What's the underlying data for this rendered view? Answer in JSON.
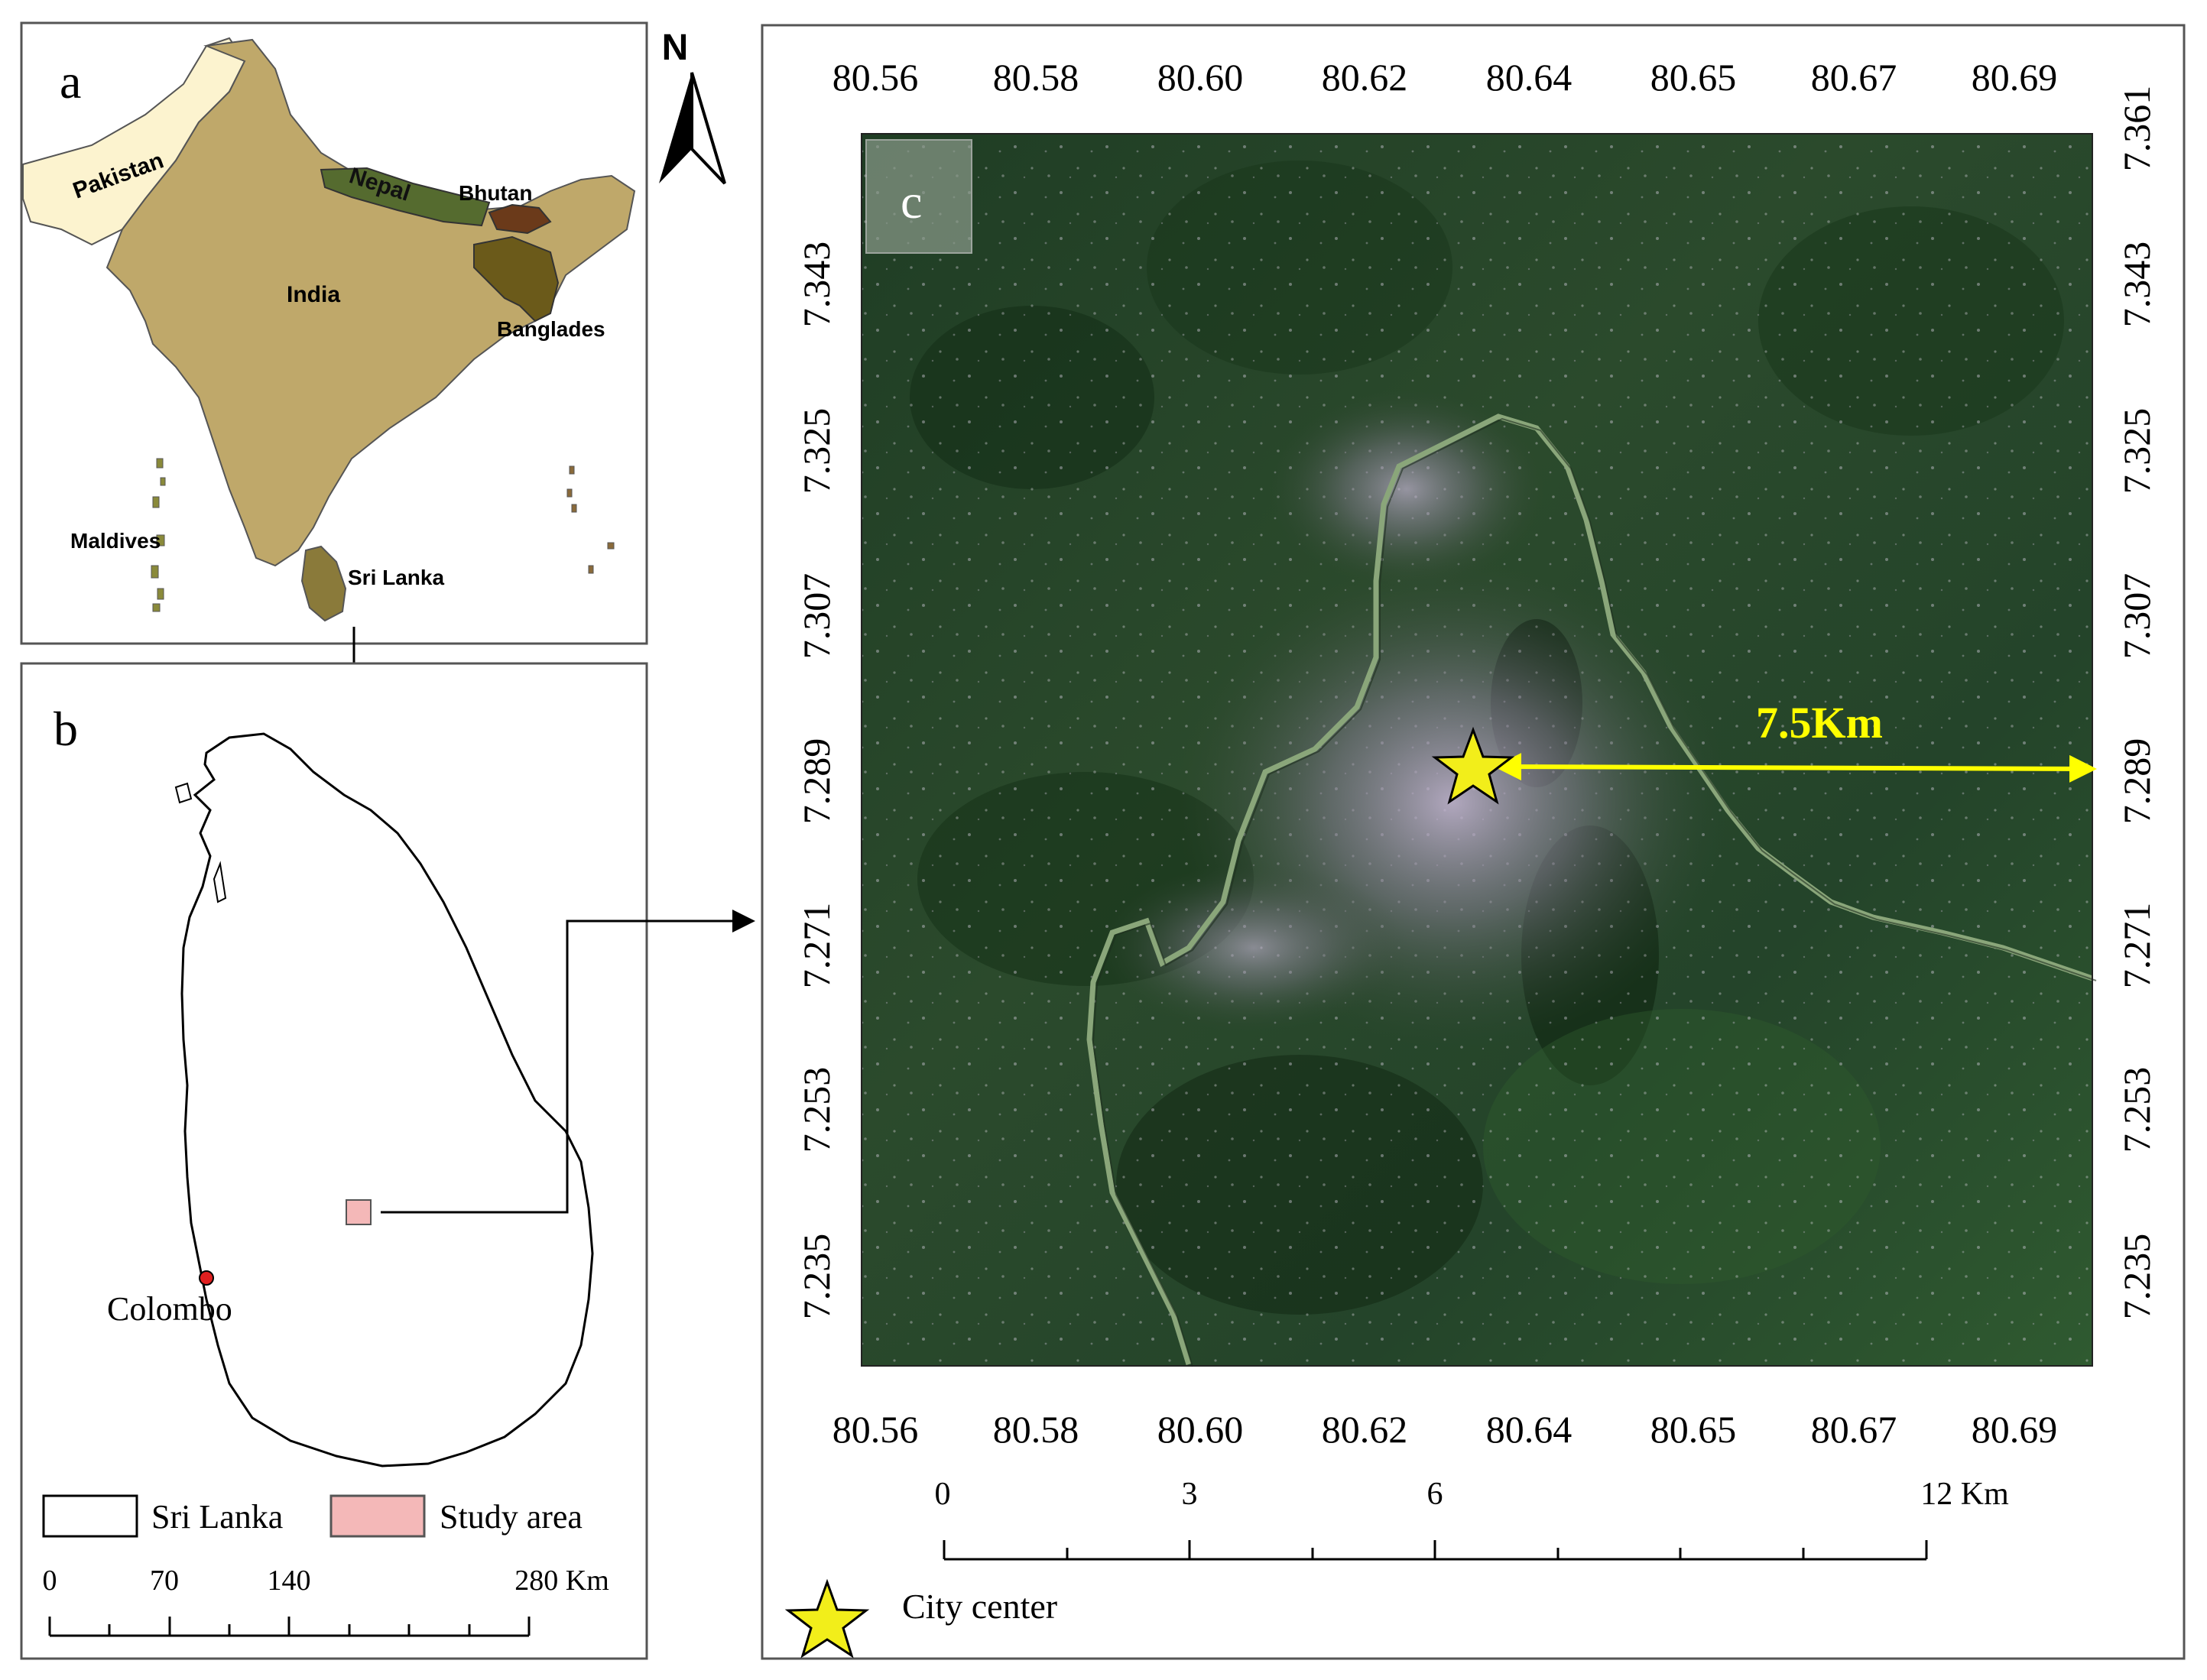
{
  "panel_a": {
    "letter": "a",
    "north": "N",
    "countries": {
      "pakistan": "Pakistan",
      "nepal": "Nepal",
      "bhutan": "Bhutan",
      "india": "India",
      "bangladesh": "Banglades",
      "maldives": "Maldives",
      "srilanka": "Sri Lanka"
    },
    "colors": {
      "india": "#bfa86a",
      "pakistan": "#fcf3cf",
      "nepal": "#556b2f",
      "bhutan": "#6b3a1a",
      "bangladesh": "#6b5a1a",
      "srilanka": "#8a7a3a"
    }
  },
  "panel_b": {
    "letter": "b",
    "city": "Colombo",
    "legend": {
      "srilanka": "Sri Lanka",
      "study_area": "Study area"
    },
    "scale_labels": [
      "0",
      "70",
      "140",
      "280 Km"
    ],
    "colors": {
      "study_area": "#f4b8b8",
      "city_dot": "#e02020"
    }
  },
  "panel_c": {
    "letter": "c",
    "x_ticks": [
      "80.56",
      "80.58",
      "80.60",
      "80.62",
      "80.64",
      "80.65",
      "80.67",
      "80.69"
    ],
    "y_ticks": [
      "7.361",
      "7.343",
      "7.325",
      "7.307",
      "7.289",
      "7.271",
      "7.253",
      "7.235"
    ],
    "distance_label": "7.5Km",
    "scale_labels": [
      "0",
      "3",
      "6",
      "12 Km"
    ],
    "legend_city_center": "City center",
    "colors": {
      "annotation": "#ffff00",
      "star": "#f2ee1a",
      "river": "#8aa67a"
    }
  }
}
